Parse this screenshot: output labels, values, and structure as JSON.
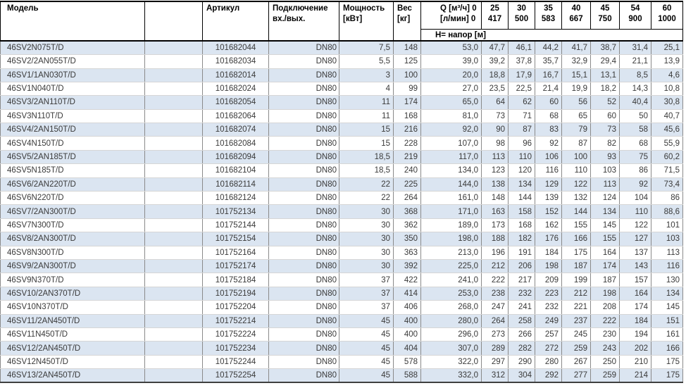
{
  "table": {
    "header": {
      "model": "Модель",
      "article": "Артикул",
      "connection_line1": "Подключение",
      "connection_line2": "вх./вых.",
      "power_line1": "Мощность",
      "power_line2": "[кВт]",
      "weight_line1": "Вес",
      "weight_line2": "[кг]",
      "q_line1": "Q [м³/ч] 0",
      "q_line2": "[л/мин] 0",
      "flow_columns": [
        {
          "m3h": "25",
          "lmin": "417"
        },
        {
          "m3h": "30",
          "lmin": "500"
        },
        {
          "m3h": "35",
          "lmin": "583"
        },
        {
          "m3h": "40",
          "lmin": "667"
        },
        {
          "m3h": "45",
          "lmin": "750"
        },
        {
          "m3h": "54",
          "lmin": "900"
        },
        {
          "m3h": "60",
          "lmin": "1000"
        }
      ],
      "head_row_label": "H= напор [м]"
    },
    "rows": [
      {
        "model": "46SV2N075T/D",
        "article": "101682044",
        "connection": "DN80",
        "power": "7,5",
        "weight": "148",
        "head": [
          "53,0",
          "47,7",
          "46,1",
          "44,2",
          "41,7",
          "38,7",
          "31,4",
          "25,1"
        ]
      },
      {
        "model": "46SV2/2AN055T/D",
        "article": "101682034",
        "connection": "DN80",
        "power": "5,5",
        "weight": "125",
        "head": [
          "39,0",
          "39,2",
          "37,8",
          "35,7",
          "32,9",
          "29,4",
          "21,1",
          "13,9"
        ]
      },
      {
        "model": "46SV1/1AN030T/D",
        "article": "101682014",
        "connection": "DN80",
        "power": "3",
        "weight": "100",
        "head": [
          "20,0",
          "18,8",
          "17,9",
          "16,7",
          "15,1",
          "13,1",
          "8,5",
          "4,6"
        ]
      },
      {
        "model": "46SV1N040T/D",
        "article": "101682024",
        "connection": "DN80",
        "power": "4",
        "weight": "99",
        "head": [
          "27,0",
          "23,5",
          "22,5",
          "21,4",
          "19,9",
          "18,2",
          "14,3",
          "10,8"
        ]
      },
      {
        "model": "46SV3/2AN110T/D",
        "article": "101682054",
        "connection": "DN80",
        "power": "11",
        "weight": "174",
        "head": [
          "65,0",
          "64",
          "62",
          "60",
          "56",
          "52",
          "40,4",
          "30,8"
        ]
      },
      {
        "model": "46SV3N110T/D",
        "article": "101682064",
        "connection": "DN80",
        "power": "11",
        "weight": "168",
        "head": [
          "81,0",
          "73",
          "71",
          "68",
          "65",
          "60",
          "50",
          "40,7"
        ]
      },
      {
        "model": "46SV4/2AN150T/D",
        "article": "101682074",
        "connection": "DN80",
        "power": "15",
        "weight": "216",
        "head": [
          "92,0",
          "90",
          "87",
          "83",
          "79",
          "73",
          "58",
          "45,6"
        ]
      },
      {
        "model": "46SV4N150T/D",
        "article": "101682084",
        "connection": "DN80",
        "power": "15",
        "weight": "228",
        "head": [
          "107,0",
          "98",
          "96",
          "92",
          "87",
          "82",
          "68",
          "55,9"
        ]
      },
      {
        "model": "46SV5/2AN185T/D",
        "article": "101682094",
        "connection": "DN80",
        "power": "18,5",
        "weight": "219",
        "head": [
          "117,0",
          "113",
          "110",
          "106",
          "100",
          "93",
          "75",
          "60,2"
        ]
      },
      {
        "model": "46SV5N185T/D",
        "article": "101682104",
        "connection": "DN80",
        "power": "18,5",
        "weight": "240",
        "head": [
          "134,0",
          "123",
          "120",
          "116",
          "110",
          "103",
          "86",
          "71,5"
        ]
      },
      {
        "model": "46SV6/2AN220T/D",
        "article": "101682114",
        "connection": "DN80",
        "power": "22",
        "weight": "225",
        "head": [
          "144,0",
          "138",
          "134",
          "129",
          "122",
          "113",
          "92",
          "73,4"
        ]
      },
      {
        "model": "46SV6N220T/D",
        "article": "101682124",
        "connection": "DN80",
        "power": "22",
        "weight": "264",
        "head": [
          "161,0",
          "148",
          "144",
          "139",
          "132",
          "124",
          "104",
          "86"
        ]
      },
      {
        "model": "46SV7/2AN300T/D",
        "article": "101752134",
        "connection": "DN80",
        "power": "30",
        "weight": "368",
        "head": [
          "171,0",
          "163",
          "158",
          "152",
          "144",
          "134",
          "110",
          "88,6"
        ]
      },
      {
        "model": "46SV7N300T/D",
        "article": "101752144",
        "connection": "DN80",
        "power": "30",
        "weight": "362",
        "head": [
          "189,0",
          "173",
          "168",
          "162",
          "155",
          "145",
          "122",
          "101"
        ]
      },
      {
        "model": "46SV8/2AN300T/D",
        "article": "101752154",
        "connection": "DN80",
        "power": "30",
        "weight": "350",
        "head": [
          "198,0",
          "188",
          "182",
          "176",
          "166",
          "155",
          "127",
          "103"
        ]
      },
      {
        "model": "46SV8N300T/D",
        "article": "101752164",
        "connection": "DN80",
        "power": "30",
        "weight": "363",
        "head": [
          "213,0",
          "196",
          "191",
          "184",
          "175",
          "164",
          "137",
          "113"
        ]
      },
      {
        "model": "46SV9/2AN300T/D",
        "article": "101752174",
        "connection": "DN80",
        "power": "30",
        "weight": "392",
        "head": [
          "225,0",
          "212",
          "206",
          "198",
          "187",
          "174",
          "143",
          "116"
        ]
      },
      {
        "model": "46SV9N370T/D",
        "article": "101752184",
        "connection": "DN80",
        "power": "37",
        "weight": "422",
        "head": [
          "241,0",
          "222",
          "217",
          "209",
          "199",
          "187",
          "157",
          "130"
        ]
      },
      {
        "model": "46SV10/2AN370T/D",
        "article": "101752194",
        "connection": "DN80",
        "power": "37",
        "weight": "414",
        "head": [
          "253,0",
          "238",
          "232",
          "223",
          "212",
          "198",
          "164",
          "134"
        ]
      },
      {
        "model": "46SV10N370T/D",
        "article": "101752204",
        "connection": "DN80",
        "power": "37",
        "weight": "406",
        "head": [
          "268,0",
          "247",
          "241",
          "232",
          "221",
          "208",
          "174",
          "145"
        ]
      },
      {
        "model": "46SV11/2AN450T/D",
        "article": "101752214",
        "connection": "DN80",
        "power": "45",
        "weight": "400",
        "head": [
          "280,0",
          "264",
          "258",
          "249",
          "237",
          "222",
          "184",
          "151"
        ]
      },
      {
        "model": "46SV11N450T/D",
        "article": "101752224",
        "connection": "DN80",
        "power": "45",
        "weight": "400",
        "head": [
          "296,0",
          "273",
          "266",
          "257",
          "245",
          "230",
          "194",
          "161"
        ]
      },
      {
        "model": "46SV12/2AN450T/D",
        "article": "101752234",
        "connection": "DN80",
        "power": "45",
        "weight": "404",
        "head": [
          "307,0",
          "289",
          "282",
          "272",
          "259",
          "243",
          "202",
          "166"
        ]
      },
      {
        "model": "46SV12N450T/D",
        "article": "101752244",
        "connection": "DN80",
        "power": "45",
        "weight": "578",
        "head": [
          "322,0",
          "297",
          "290",
          "280",
          "267",
          "250",
          "210",
          "175"
        ]
      },
      {
        "model": "46SV13/2AN450T/D",
        "article": "101752254",
        "connection": "DN80",
        "power": "45",
        "weight": "588",
        "head": [
          "332,0",
          "312",
          "304",
          "292",
          "277",
          "259",
          "214",
          "175"
        ]
      }
    ]
  },
  "colors": {
    "row_stripe": "#dbe5f1",
    "header_border": "#000000",
    "body_divider": "#8a8a8a",
    "text": "#3a3a3a"
  }
}
